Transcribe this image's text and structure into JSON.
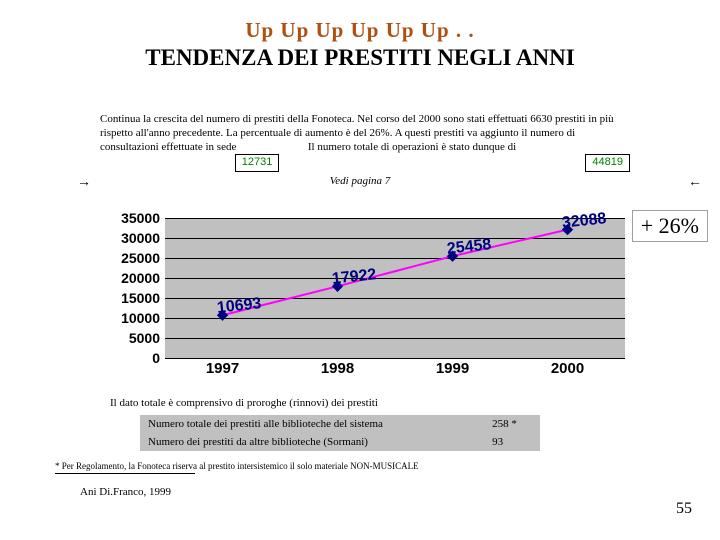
{
  "title": {
    "up": "Up Up Up Up Up Up . .",
    "main": "TENDENZA DEI PRESTITI NEGLI ANNI"
  },
  "paragraph": {
    "line1": "Continua la crescita del numero di prestiti della Fonoteca. Nel corso del 2000 sono stati effettuati 6630 prestiti in più rispetto all'anno precedente. La percentuale di aumento è del 26%. A questi prestiti va aggiunto il numero di consultazioni effettuate in sede",
    "mid": "Il numero totale di operazioni è stato dunque di",
    "box1": "12731",
    "box2": "44819",
    "vedi": "Vedi pagina 7"
  },
  "chart": {
    "type": "line",
    "categories": [
      "1997",
      "1998",
      "1999",
      "2000"
    ],
    "values": [
      10693,
      17922,
      25458,
      32088
    ],
    "ylim": [
      0,
      35000
    ],
    "ytick_step": 5000,
    "background_color": "#c0c0c0",
    "grid_color": "#000000",
    "line_color": "#ff00ff",
    "marker_color": "#000080",
    "marker": "diamond",
    "label_color": "#000080",
    "label_fontsize": 16,
    "tick_fontsize": 14,
    "tick_fontweight": "bold",
    "label_rotation_deg": -6
  },
  "badge": {
    "text": "+ 26%"
  },
  "caption": "Il dato totale è comprensivo di proroghe (rinnovi) dei prestiti",
  "table": {
    "rows": [
      {
        "label": "Numero totale dei prestiti alle biblioteche del sistema",
        "value": "258 *"
      },
      {
        "label": "Numero dei prestiti da altre biblioteche (Sormani)",
        "value": "93"
      }
    ],
    "background_color": "#c0c0c0"
  },
  "footnote": "* Per Regolamento, la Fonoteca riserva al prestito intersistemico il solo materiale NON-MUSICALE",
  "author": "Ani Di.Franco, 1999",
  "pagenum": "55"
}
